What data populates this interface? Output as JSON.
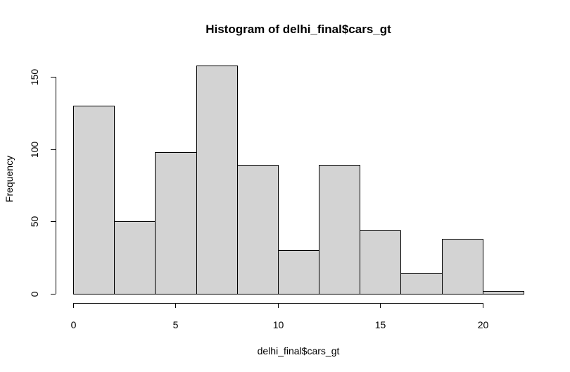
{
  "chart_data": {
    "type": "bar",
    "title": "Histogram of delhi_final$cars_gt",
    "xlabel": "delhi_final$cars_gt",
    "ylabel": "Frequency",
    "bins": [
      {
        "start": 0,
        "end": 2,
        "value": 130
      },
      {
        "start": 2,
        "end": 4,
        "value": 50
      },
      {
        "start": 4,
        "end": 6,
        "value": 98
      },
      {
        "start": 6,
        "end": 8,
        "value": 158
      },
      {
        "start": 8,
        "end": 10,
        "value": 89
      },
      {
        "start": 10,
        "end": 12,
        "value": 30
      },
      {
        "start": 12,
        "end": 14,
        "value": 89
      },
      {
        "start": 14,
        "end": 16,
        "value": 44
      },
      {
        "start": 16,
        "end": 18,
        "value": 14
      },
      {
        "start": 18,
        "end": 20,
        "value": 38
      },
      {
        "start": 20,
        "end": 22,
        "value": 2
      }
    ],
    "xlim": [
      0,
      22
    ],
    "ylim": [
      0,
      158
    ],
    "x_ticks": [
      0,
      5,
      10,
      15,
      20
    ],
    "y_ticks": [
      0,
      50,
      100,
      150
    ],
    "bar_color": "#d3d3d3",
    "grid": false
  }
}
